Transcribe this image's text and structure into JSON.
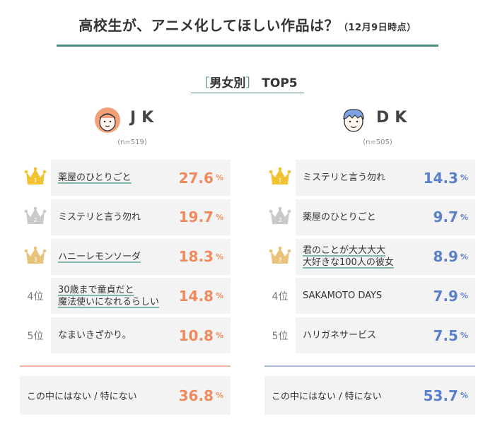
{
  "title": {
    "main": "高校生が、アニメ化してほしい作品は？",
    "sub": "（12月9日時点）"
  },
  "section": {
    "open": "［",
    "label": "男女別",
    "close": "］",
    "rest": " TOP5"
  },
  "colors": {
    "teal": "#4d8a80",
    "jk": "#f08a5d",
    "dk": "#5b7fc9",
    "gold": "#f2c230",
    "silver": "#c9c9c9",
    "bronze": "#e9c27a"
  },
  "groups": {
    "jk": {
      "name": "JK",
      "n": "(n=519)"
    },
    "dk": {
      "name": "DK",
      "n": "(n=505)"
    }
  },
  "rank_labels": [
    "1",
    "2",
    "3",
    "4位",
    "5位"
  ],
  "pct": "%",
  "chart_data": {
    "type": "table",
    "title": "高校生が、アニメ化してほしい作品は？（12月9日時点）",
    "subtitle": "［男女別］TOP5",
    "series": [
      {
        "name": "JK",
        "n": "(n=519)",
        "items": [
          {
            "rank": 1,
            "title": "薬屋のひとりごと",
            "value": 27.6
          },
          {
            "rank": 2,
            "title": "ミステリと言う勿れ",
            "value": 19.7
          },
          {
            "rank": 3,
            "title": "ハニーレモンソーダ",
            "value": 18.3
          },
          {
            "rank": 4,
            "title": "30歳まで童貞だと 魔法使いになれるらしい",
            "value": 14.8
          },
          {
            "rank": 5,
            "title": "なまいきざかり。",
            "value": 10.8
          }
        ],
        "other": {
          "title": "この中にはない / 特にない",
          "value": 36.8
        }
      },
      {
        "name": "DK",
        "n": "(n=505)",
        "items": [
          {
            "rank": 1,
            "title": "ミステリと言う勿れ",
            "value": 14.3
          },
          {
            "rank": 2,
            "title": "薬屋のひとりごと",
            "value": 9.7
          },
          {
            "rank": 3,
            "title": "君のことが大大大大 大好きな100人の彼女",
            "value": 8.9
          },
          {
            "rank": 4,
            "title": "SAKAMOTO DAYS",
            "value": 7.9
          },
          {
            "rank": 5,
            "title": "ハリガネサービス",
            "value": 7.5
          }
        ],
        "other": {
          "title": "この中にはない / 特にない",
          "value": 53.7
        }
      }
    ]
  },
  "display": {
    "jk": [
      {
        "line1": "薬屋のひとりごと",
        "line2": "",
        "underline": true,
        "value": "27.6"
      },
      {
        "line1": "ミステリと言う勿れ",
        "line2": "",
        "underline": false,
        "value": "19.7"
      },
      {
        "line1": "ハニーレモンソーダ",
        "line2": "",
        "underline": true,
        "value": "18.3"
      },
      {
        "line1": "30歳まで童貞だと",
        "line2": "魔法使いになれるらしい",
        "underline": true,
        "value": "14.8"
      },
      {
        "line1": "なまいきざかり。",
        "line2": "",
        "underline": false,
        "value": "10.8"
      }
    ],
    "dk": [
      {
        "line1": "ミステリと言う勿れ",
        "line2": "",
        "underline": false,
        "value": "14.3"
      },
      {
        "line1": "薬屋のひとりごと",
        "line2": "",
        "underline": false,
        "value": "9.7"
      },
      {
        "line1": "君のことが大大大大",
        "line2": "大好きな100人の彼女",
        "underline": true,
        "value": "8.9"
      },
      {
        "line1": "SAKAMOTO DAYS",
        "line2": "",
        "underline": false,
        "value": "7.9"
      },
      {
        "line1": "ハリガネサービス",
        "line2": "",
        "underline": false,
        "value": "7.5"
      }
    ],
    "jk_other": {
      "label": "この中にはない / 特にない",
      "value": "36.8"
    },
    "dk_other": {
      "label": "この中にはない / 特にない",
      "value": "53.7"
    }
  }
}
